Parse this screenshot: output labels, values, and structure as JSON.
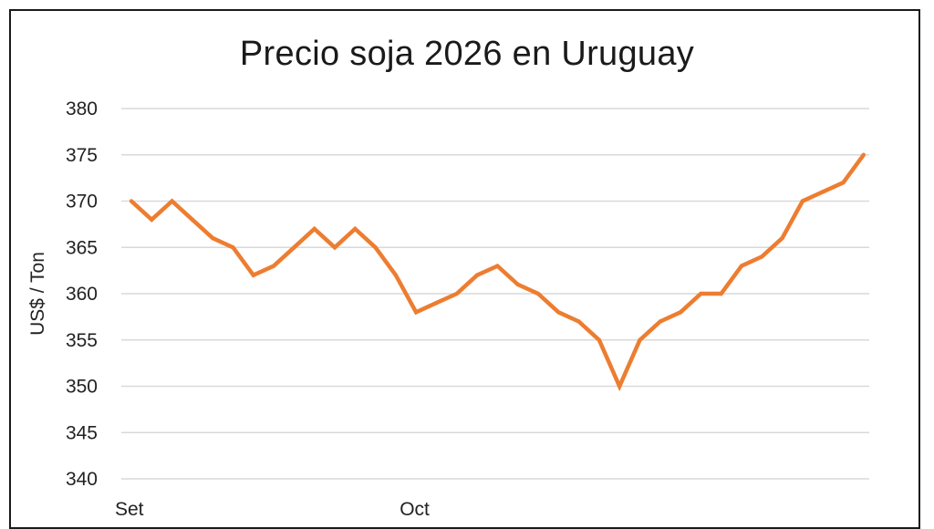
{
  "chart_data": {
    "type": "line",
    "title": "Precio soja 2026 en Uruguay",
    "xlabel": "",
    "ylabel": "US$ / Ton",
    "ylim": [
      340,
      380
    ],
    "yticks": [
      340,
      345,
      350,
      355,
      360,
      365,
      370,
      375,
      380
    ],
    "xtick_labels": [
      {
        "label": "Set",
        "index": 0
      },
      {
        "label": "Oct",
        "index": 14
      }
    ],
    "grid": true,
    "legend": "none",
    "series": [
      {
        "color": "#ed7d31",
        "values": [
          370,
          368,
          370,
          368,
          366,
          365,
          362,
          363,
          365,
          367,
          365,
          367,
          365,
          362,
          358,
          359,
          360,
          362,
          363,
          361,
          360,
          358,
          357,
          355,
          350,
          355,
          357,
          358,
          360,
          360,
          363,
          364,
          366,
          370,
          371,
          372,
          375
        ]
      }
    ]
  }
}
